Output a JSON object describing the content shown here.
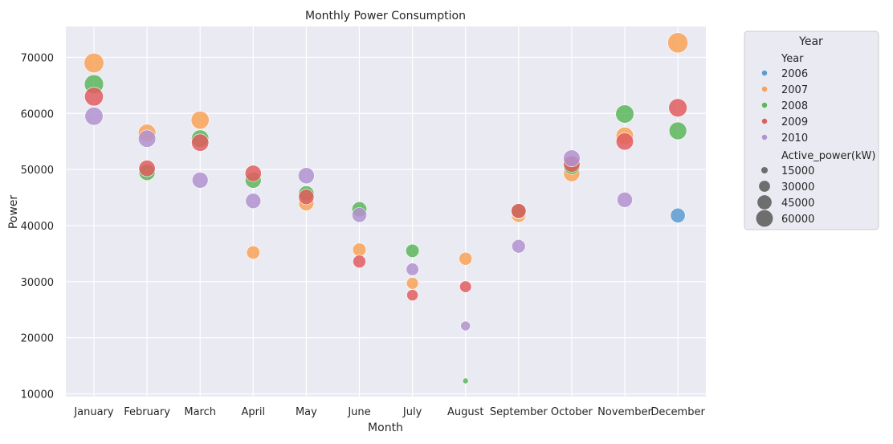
{
  "chart_data": {
    "type": "scatter",
    "title": "Monthly Power Consumption",
    "xlabel": "Month",
    "ylabel": "Power",
    "categories": [
      "January",
      "February",
      "March",
      "April",
      "May",
      "June",
      "July",
      "August",
      "September",
      "October",
      "November",
      "December"
    ],
    "ylim": [
      9500,
      75500
    ],
    "yticks": [
      10000,
      20000,
      30000,
      40000,
      50000,
      60000,
      70000
    ],
    "grid": true,
    "legend": {
      "placement": "outside-right",
      "title": "Year",
      "hue_title": "Year",
      "size_title": "Active_power(kW)",
      "hue_entries": [
        {
          "label": "2006",
          "color": "#5b9bd0"
        },
        {
          "label": "2007",
          "color": "#f8a257"
        },
        {
          "label": "2008",
          "color": "#5cb65c"
        },
        {
          "label": "2009",
          "color": "#e15d5f"
        },
        {
          "label": "2010",
          "color": "#b192d0"
        }
      ],
      "size_entries": [
        "15000",
        "30000",
        "45000",
        "60000"
      ],
      "size_values": [
        15000,
        30000,
        45000,
        60000
      ]
    },
    "size_range": [
      12000,
      73000
    ],
    "series": [
      {
        "name": "2006",
        "color": "#5b9bd0",
        "points": [
          {
            "x": "December",
            "y": 41800
          }
        ]
      },
      {
        "name": "2007",
        "color": "#f8a257",
        "points": [
          {
            "x": "January",
            "y": 69000
          },
          {
            "x": "February",
            "y": 56500
          },
          {
            "x": "March",
            "y": 58800
          },
          {
            "x": "April",
            "y": 35200
          },
          {
            "x": "May",
            "y": 44000
          },
          {
            "x": "June",
            "y": 35700
          },
          {
            "x": "July",
            "y": 29700
          },
          {
            "x": "August",
            "y": 34100
          },
          {
            "x": "September",
            "y": 41900
          },
          {
            "x": "October",
            "y": 49300
          },
          {
            "x": "November",
            "y": 56000
          },
          {
            "x": "December",
            "y": 72600
          }
        ]
      },
      {
        "name": "2008",
        "color": "#5cb65c",
        "points": [
          {
            "x": "January",
            "y": 65200
          },
          {
            "x": "February",
            "y": 49500
          },
          {
            "x": "March",
            "y": 55500
          },
          {
            "x": "April",
            "y": 48100
          },
          {
            "x": "May",
            "y": 45700
          },
          {
            "x": "June",
            "y": 42900
          },
          {
            "x": "July",
            "y": 35500
          },
          {
            "x": "August",
            "y": 12300
          },
          {
            "x": "September",
            "y": 42500
          },
          {
            "x": "October",
            "y": 50600
          },
          {
            "x": "November",
            "y": 59900
          },
          {
            "x": "December",
            "y": 56900
          }
        ]
      },
      {
        "name": "2009",
        "color": "#e15d5f",
        "points": [
          {
            "x": "January",
            "y": 63000
          },
          {
            "x": "February",
            "y": 50200
          },
          {
            "x": "March",
            "y": 54800
          },
          {
            "x": "April",
            "y": 49300
          },
          {
            "x": "May",
            "y": 45100
          },
          {
            "x": "June",
            "y": 33600
          },
          {
            "x": "July",
            "y": 27600
          },
          {
            "x": "August",
            "y": 29100
          },
          {
            "x": "September",
            "y": 42600
          },
          {
            "x": "October",
            "y": 51000
          },
          {
            "x": "November",
            "y": 55000
          },
          {
            "x": "December",
            "y": 61000
          }
        ]
      },
      {
        "name": "2010",
        "color": "#b192d0",
        "points": [
          {
            "x": "January",
            "y": 59500
          },
          {
            "x": "February",
            "y": 55500
          },
          {
            "x": "March",
            "y": 48100
          },
          {
            "x": "April",
            "y": 44400
          },
          {
            "x": "May",
            "y": 48900
          },
          {
            "x": "June",
            "y": 41900
          },
          {
            "x": "July",
            "y": 32200
          },
          {
            "x": "August",
            "y": 22100
          },
          {
            "x": "September",
            "y": 36300
          },
          {
            "x": "October",
            "y": 52000
          },
          {
            "x": "November",
            "y": 44600
          }
        ]
      }
    ]
  }
}
